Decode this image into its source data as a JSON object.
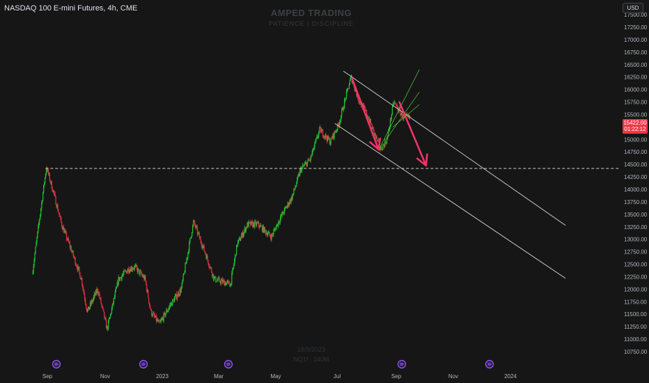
{
  "header": {
    "title": "NASDAQ 100 E-mini Futures, 4h, CME"
  },
  "watermark": {
    "title": "AMPED TRADING",
    "subtitle": "PATIENCE | DISCIPLINE",
    "date": "18/9/2023",
    "symbol": "NQ1! , 240M"
  },
  "price_axis": {
    "currency": "USD",
    "ticks": [
      "17500.00",
      "17250.00",
      "17000.00",
      "16750.00",
      "16500.00",
      "16250.00",
      "16000.00",
      "15750.00",
      "15500.00",
      "15250.00",
      "15000.00",
      "14750.00",
      "14500.00",
      "14250.00",
      "14000.00",
      "13750.00",
      "13500.00",
      "13250.00",
      "13000.00",
      "12750.00",
      "12500.00",
      "12250.00",
      "12000.00",
      "11750.00",
      "11500.00",
      "11250.00",
      "11000.00",
      "10750.00"
    ]
  },
  "time_axis": {
    "labels": [
      "Sep",
      "Nov",
      "2023",
      "Mar",
      "May",
      "Jul",
      "Sep",
      "Nov",
      "2024"
    ]
  },
  "current_price": {
    "price": "15422.00",
    "countdown": "01:22:12"
  },
  "colors": {
    "background": "#161616",
    "up": "#22c931",
    "down": "#e8334a",
    "arrow": "#f0336b",
    "channel": "#d8d8d8",
    "fork": "#4fbf3a",
    "event_icon": "#9b59ff"
  },
  "icons": [
    "event-icon"
  ],
  "chart_data": {
    "type": "candlestick",
    "symbol": "NASDAQ 100 E-mini Futures",
    "interval": "4h",
    "exchange": "CME",
    "y_range": [
      10650,
      17700
    ],
    "price_path": [
      [
        "2022-08-16",
        12300
      ],
      [
        "2022-08-24",
        13450
      ],
      [
        "2022-08-31",
        14450
      ],
      [
        "2022-09-08",
        13900
      ],
      [
        "2022-09-16",
        13300
      ],
      [
        "2022-09-26",
        12800
      ],
      [
        "2022-10-07",
        12200
      ],
      [
        "2022-10-13",
        11550
      ],
      [
        "2022-10-24",
        12000
      ],
      [
        "2022-11-03",
        11200
      ],
      [
        "2022-11-15",
        12200
      ],
      [
        "2022-11-25",
        12400
      ],
      [
        "2022-12-02",
        12450
      ],
      [
        "2022-12-13",
        12200
      ],
      [
        "2022-12-19",
        11550
      ],
      [
        "2022-12-28",
        11300
      ],
      [
        "2023-01-09",
        11700
      ],
      [
        "2023-01-20",
        12000
      ],
      [
        "2023-02-02",
        13350
      ],
      [
        "2023-02-13",
        12800
      ],
      [
        "2023-02-24",
        12200
      ],
      [
        "2023-03-13",
        12100
      ],
      [
        "2023-03-20",
        12900
      ],
      [
        "2023-03-31",
        13300
      ],
      [
        "2023-04-11",
        13300
      ],
      [
        "2023-04-25",
        13050
      ],
      [
        "2023-05-05",
        13450
      ],
      [
        "2023-05-17",
        13850
      ],
      [
        "2023-05-26",
        14400
      ],
      [
        "2023-06-05",
        14600
      ],
      [
        "2023-06-15",
        15200
      ],
      [
        "2023-06-26",
        14950
      ],
      [
        "2023-07-05",
        15300
      ],
      [
        "2023-07-18",
        16250
      ],
      [
        "2023-07-26",
        15800
      ],
      [
        "2023-08-04",
        15500
      ],
      [
        "2023-08-18",
        14800
      ],
      [
        "2023-08-25",
        15000
      ],
      [
        "2023-09-01",
        15750
      ],
      [
        "2023-09-11",
        15450
      ],
      [
        "2023-09-18",
        15422
      ]
    ],
    "current_price": 15422,
    "horizontal_level": 14420,
    "descending_channel": {
      "upper": [
        [
          "2023-07-10",
          16370
        ],
        [
          "2024-02-29",
          13280
        ]
      ],
      "lower": [
        [
          "2023-07-01",
          15320
        ],
        [
          "2024-02-29",
          12220
        ]
      ]
    },
    "projection_arrows": [
      {
        "from": [
          "2023-07-19",
          16230
        ],
        "to": [
          "2023-08-16",
          14800
        ]
      },
      {
        "from": [
          "2023-09-07",
          15750
        ],
        "to": [
          "2023-10-05",
          14480
        ]
      }
    ],
    "grid": false,
    "legend": "none"
  }
}
